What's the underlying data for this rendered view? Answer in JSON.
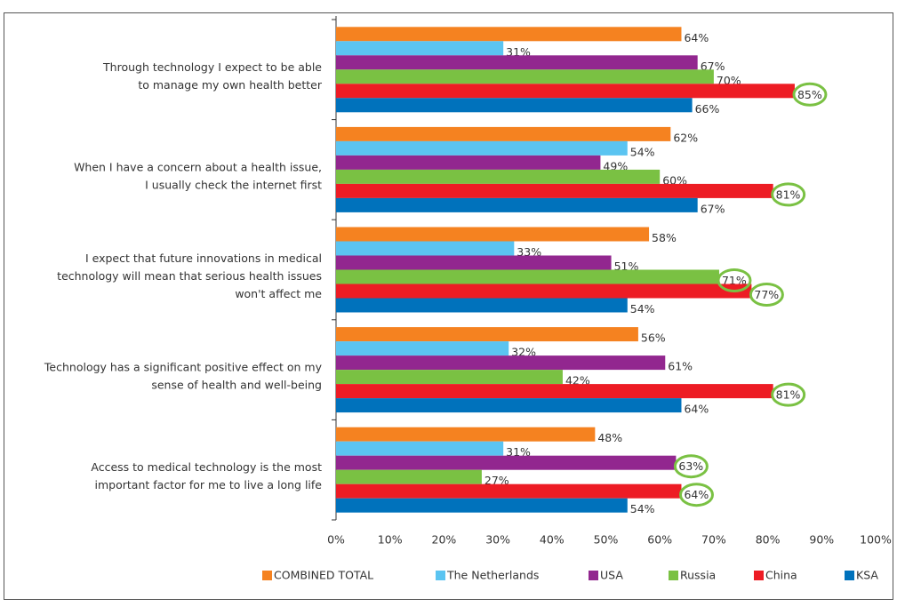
{
  "chart_data": {
    "type": "hbar",
    "categories": [
      [
        "Through technology I expect to be able",
        "to manage my own health better"
      ],
      [
        "When I have a concern about a health issue,",
        "I usually check the internet first"
      ],
      [
        "I expect that future innovations in medical",
        "technology will mean that serious health issues",
        "won't affect me"
      ],
      [
        "Technology has a significant positive effect on my",
        "sense of health and well-being"
      ],
      [
        "Access to medical technology is the most",
        "important factor for me to live a long life"
      ]
    ],
    "series": [
      {
        "name": "COMBINED TOTAL",
        "color": "#f58220",
        "values": [
          64,
          62,
          58,
          56,
          48
        ],
        "value_labels": [
          "64%",
          "62%",
          "58%",
          "56%",
          "48%"
        ]
      },
      {
        "name": "The Netherlands",
        "color": "#5bc4f1",
        "values": [
          31,
          54,
          33,
          32,
          31
        ],
        "value_labels": [
          "31%",
          "54%",
          "33%",
          "32%",
          "31%"
        ]
      },
      {
        "name": "USA",
        "color": "#92278f",
        "values": [
          67,
          49,
          51,
          61,
          63
        ],
        "value_labels": [
          "67%",
          "49%",
          "51%",
          "61%",
          "63%"
        ]
      },
      {
        "name": "Russia",
        "color": "#7ac143",
        "values": [
          70,
          60,
          71,
          42,
          27
        ],
        "value_labels": [
          "70%",
          "60%",
          "71%",
          "42%",
          "27%"
        ]
      },
      {
        "name": "China",
        "color": "#ed1c24",
        "values": [
          85,
          81,
          77,
          81,
          64
        ],
        "value_labels": [
          "85%",
          "81%",
          "77%",
          "81%",
          "64%"
        ]
      },
      {
        "name": "KSA",
        "color": "#0072bc",
        "values": [
          66,
          67,
          54,
          64,
          54
        ],
        "value_labels": [
          "66%",
          "67%",
          "54%",
          "64%",
          "54%"
        ]
      }
    ],
    "xlim": [
      0,
      100
    ],
    "xticks": [
      {
        "value": 0,
        "label": "0%"
      },
      {
        "value": 10,
        "label": "10%"
      },
      {
        "value": 20,
        "label": "20%"
      },
      {
        "value": 30,
        "label": "30%"
      },
      {
        "value": 40,
        "label": "40%"
      },
      {
        "value": 50,
        "label": "50%"
      },
      {
        "value": 60,
        "label": "60%"
      },
      {
        "value": 70,
        "label": "70%"
      },
      {
        "value": 80,
        "label": "80%"
      },
      {
        "value": 90,
        "label": "90%"
      },
      {
        "value": 100,
        "label": "100%"
      }
    ],
    "grid": false,
    "legend": "bottom",
    "highlight_color": "#7ac143",
    "highlights": [
      {
        "series": 4,
        "category": 0
      },
      {
        "series": 4,
        "category": 1
      },
      {
        "series": 3,
        "category": 2
      },
      {
        "series": 4,
        "category": 2
      },
      {
        "series": 4,
        "category": 3
      },
      {
        "series": 2,
        "category": 4
      },
      {
        "series": 4,
        "category": 4
      }
    ]
  }
}
